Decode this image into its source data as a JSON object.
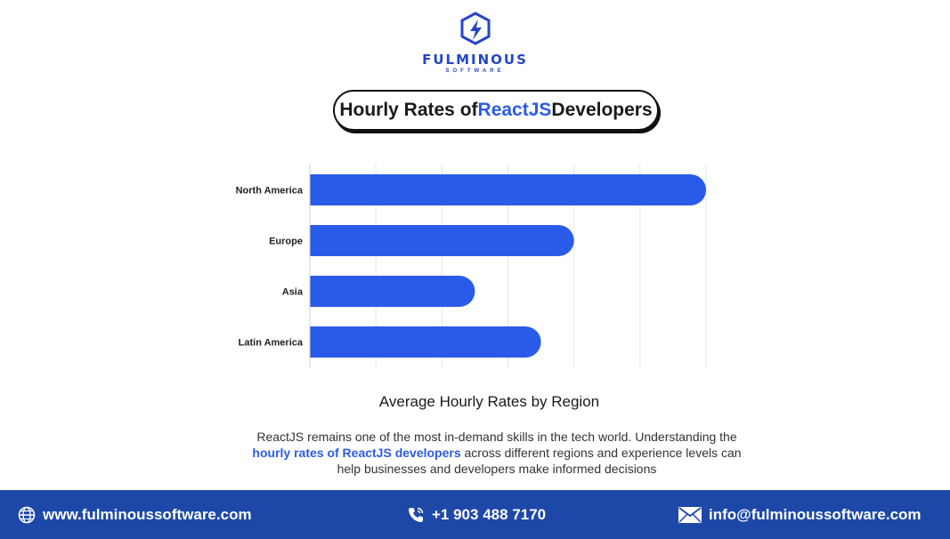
{
  "brand": {
    "name": "FULMINOUS",
    "sub": "SOFTWARE"
  },
  "title": {
    "prefix": "Hourly Rates of ",
    "accent": "ReactJS",
    "suffix": " Developers"
  },
  "chart_data": {
    "type": "bar",
    "orientation": "horizontal",
    "categories": [
      "North America",
      "Europe",
      "Asia",
      "Latin America"
    ],
    "values": [
      120,
      80,
      50,
      70
    ],
    "xlim": [
      0,
      120
    ],
    "xticks": [
      "$0",
      "$20",
      "$40",
      "$60",
      "$80",
      "$100",
      "$120"
    ],
    "grid": true,
    "bar_color": "#2a5ae8",
    "title": "Average Hourly Rates by Region"
  },
  "description": {
    "part1": "ReactJS remains one of the most in-demand skills in the tech world. Understanding the ",
    "link": "hourly rates of ReactJS developers",
    "part2": " across different regions and experience levels can help businesses and developers make informed decisions"
  },
  "footer": {
    "website": "www.fulminoussoftware.com",
    "phone": "+1 903 488 7170",
    "email": "info@fulminoussoftware.com",
    "background": "#1d48a8"
  }
}
